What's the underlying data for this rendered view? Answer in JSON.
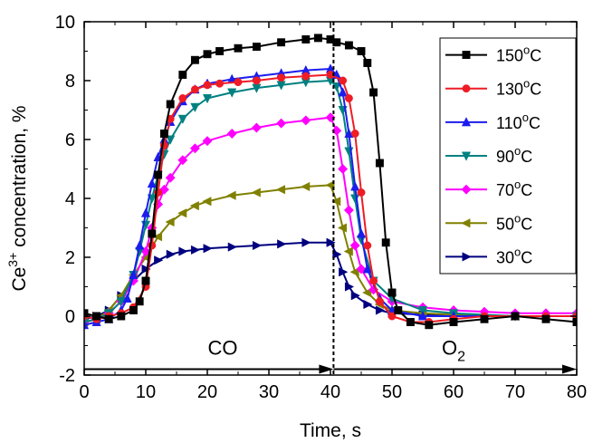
{
  "chart_data": {
    "type": "line",
    "title": "",
    "xlabel": "Time, s",
    "ylabel": {
      "prefix": "Ce",
      "sup": "3+",
      "suffix": " concentration, %"
    },
    "xlim": [
      0,
      80
    ],
    "ylim": [
      -2,
      10
    ],
    "xticks": [
      "0",
      "10",
      "20",
      "30",
      "40",
      "50",
      "60",
      "70",
      "80"
    ],
    "yticks": [
      "-2",
      "0",
      "2",
      "4",
      "6",
      "8",
      "10"
    ],
    "grid": false,
    "legend_position": "top-right",
    "annotations": {
      "co_label": "CO",
      "o2_label": "O",
      "o2_sub": "2",
      "switch_time": 40.5
    },
    "series": [
      {
        "name": "150",
        "unit": "oC",
        "color": "#000000",
        "marker": "square",
        "x": [
          0,
          2,
          4,
          6,
          8,
          9,
          10,
          11,
          12,
          13,
          14,
          16,
          18,
          20,
          22,
          25,
          28,
          32,
          36,
          38,
          40,
          41,
          43,
          45,
          46,
          47,
          48,
          49,
          50,
          51,
          53,
          56,
          60,
          65,
          70,
          75,
          80
        ],
        "y": [
          0.1,
          0.0,
          -0.1,
          0.0,
          0.2,
          0.5,
          1.2,
          2.8,
          4.8,
          6.2,
          7.2,
          8.2,
          8.7,
          8.9,
          9.0,
          9.1,
          9.15,
          9.3,
          9.4,
          9.45,
          9.4,
          9.3,
          9.2,
          9.0,
          8.6,
          7.6,
          5.2,
          2.5,
          0.8,
          0.2,
          -0.2,
          -0.3,
          -0.2,
          -0.1,
          0.0,
          -0.1,
          -0.2
        ]
      },
      {
        "name": "130",
        "unit": "oC",
        "color": "#ee1c25",
        "marker": "circle",
        "x": [
          0,
          2,
          4,
          6,
          8,
          10,
          11,
          12,
          13,
          14,
          16,
          18,
          20,
          22,
          25,
          28,
          32,
          36,
          40,
          42,
          43,
          44,
          45,
          46,
          47,
          48,
          50,
          53,
          56,
          60,
          65,
          70,
          75,
          80
        ],
        "y": [
          0.0,
          -0.1,
          0.0,
          0.1,
          0.3,
          1.0,
          2.4,
          4.2,
          5.8,
          6.7,
          7.4,
          7.7,
          7.85,
          7.9,
          7.95,
          8.0,
          8.1,
          8.15,
          8.2,
          8.0,
          7.4,
          6.2,
          4.2,
          2.4,
          1.2,
          0.5,
          0.0,
          -0.2,
          -0.2,
          -0.1,
          0.0,
          0.0,
          0.0,
          0.0
        ]
      },
      {
        "name": "110",
        "unit": "oC",
        "color": "#1c1cee",
        "marker": "triangle-up",
        "x": [
          0,
          2,
          4,
          6,
          7,
          8,
          9,
          10,
          11,
          12,
          13,
          14,
          16,
          18,
          20,
          24,
          28,
          32,
          36,
          40,
          41,
          42,
          43,
          44,
          45,
          46,
          48,
          50,
          55,
          60,
          70,
          80
        ],
        "y": [
          -0.3,
          -0.2,
          -0.1,
          0.2,
          0.6,
          1.4,
          2.4,
          3.5,
          4.5,
          5.4,
          6.0,
          6.6,
          7.3,
          7.7,
          7.9,
          8.05,
          8.15,
          8.25,
          8.35,
          8.4,
          8.2,
          7.6,
          6.2,
          4.4,
          2.8,
          1.6,
          0.6,
          0.2,
          0.0,
          0.0,
          0.0,
          0.0
        ]
      },
      {
        "name": "90",
        "unit": "oC",
        "color": "#008080",
        "marker": "triangle-down",
        "x": [
          0,
          2,
          4,
          6,
          8,
          9,
          10,
          11,
          12,
          13,
          14,
          16,
          18,
          20,
          24,
          28,
          32,
          36,
          40,
          41,
          42,
          43,
          44,
          45,
          47,
          50,
          55,
          60,
          70,
          80
        ],
        "y": [
          -0.2,
          -0.1,
          0.1,
          0.5,
          1.4,
          2.2,
          3.1,
          4.0,
          4.8,
          5.5,
          6.0,
          6.7,
          7.1,
          7.4,
          7.6,
          7.75,
          7.85,
          7.95,
          8.0,
          7.8,
          7.0,
          5.6,
          4.0,
          2.6,
          1.2,
          0.6,
          0.2,
          0.1,
          0.0,
          0.0
        ]
      },
      {
        "name": "70",
        "unit": "oC",
        "color": "#ff00ff",
        "marker": "diamond",
        "x": [
          0,
          2,
          4,
          6,
          8,
          10,
          11,
          12,
          13,
          14,
          16,
          18,
          20,
          24,
          28,
          32,
          36,
          40,
          41,
          42,
          43,
          44,
          45,
          47,
          50,
          55,
          60,
          65,
          70,
          75,
          80
        ],
        "y": [
          -0.2,
          -0.1,
          0.1,
          0.5,
          1.2,
          2.2,
          3.0,
          3.8,
          4.3,
          4.7,
          5.3,
          5.7,
          5.95,
          6.2,
          6.4,
          6.55,
          6.65,
          6.75,
          6.3,
          5.0,
          3.6,
          2.4,
          1.6,
          0.9,
          0.5,
          0.3,
          0.2,
          0.15,
          0.1,
          0.1,
          0.1
        ]
      },
      {
        "name": "50",
        "unit": "oC",
        "color": "#808000",
        "marker": "triangle-left",
        "x": [
          0,
          2,
          4,
          6,
          8,
          10,
          12,
          14,
          16,
          18,
          20,
          24,
          28,
          32,
          36,
          40,
          41,
          42,
          43,
          44,
          46,
          48,
          50,
          55,
          60,
          70,
          80
        ],
        "y": [
          -0.2,
          -0.1,
          0.2,
          0.7,
          1.4,
          2.0,
          2.7,
          3.2,
          3.5,
          3.75,
          3.9,
          4.1,
          4.2,
          4.3,
          4.4,
          4.45,
          3.9,
          3.0,
          2.2,
          1.5,
          0.8,
          0.4,
          0.2,
          0.1,
          0.05,
          0.0,
          0.0
        ]
      },
      {
        "name": "30",
        "unit": "oC",
        "color": "#00007f",
        "marker": "triangle-right",
        "x": [
          0,
          2,
          4,
          6,
          8,
          10,
          12,
          14,
          16,
          18,
          20,
          24,
          28,
          32,
          36,
          40,
          41,
          42,
          43,
          44,
          46,
          48,
          50,
          55,
          60,
          70,
          80
        ],
        "y": [
          -0.1,
          0.0,
          0.2,
          0.7,
          1.2,
          1.6,
          1.9,
          2.1,
          2.2,
          2.25,
          2.3,
          2.35,
          2.4,
          2.45,
          2.5,
          2.5,
          2.1,
          1.5,
          1.0,
          0.7,
          0.4,
          0.2,
          0.1,
          0.05,
          0.0,
          0.0,
          0.0
        ]
      }
    ]
  }
}
